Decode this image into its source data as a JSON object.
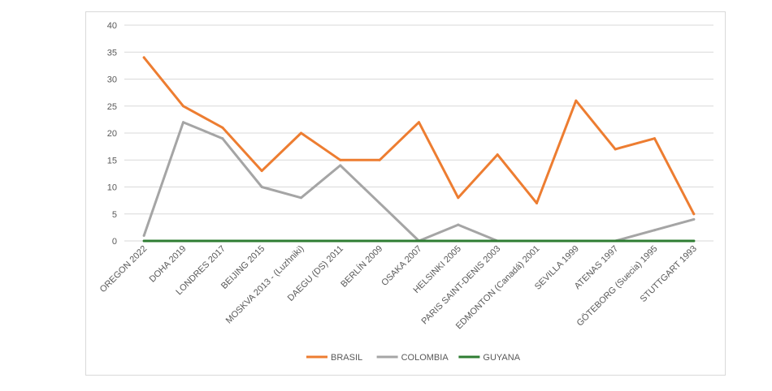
{
  "chart_data": {
    "type": "line",
    "categories": [
      "OREGON 2022",
      "DOHA 2019",
      "LONDRES 2017",
      "BEIJING 2015",
      "MOSKVA 2013 - (Luzhniki)",
      "DAEGU (DS) 2011",
      "BERLÍN 2009",
      "OSAKA 2007",
      "HELSINKI 2005",
      "PARIS SAINT-DENIS 2003",
      "EDMONTON (Canadá) 2001",
      "SEVILLA 1999",
      "ATENAS 1997",
      "GÖTEBORG (Suecia) 1995",
      "STUTTGART 1993"
    ],
    "series": [
      {
        "name": "BRASIL",
        "color": "#ED7D31",
        "values": [
          34,
          25,
          21,
          13,
          20,
          15,
          15,
          22,
          8,
          16,
          7,
          26,
          17,
          19,
          5
        ]
      },
      {
        "name": "COLOMBIA",
        "color": "#A5A5A5",
        "values": [
          1,
          22,
          19,
          10,
          8,
          14,
          7,
          0,
          3,
          0,
          0,
          0,
          0,
          2,
          4
        ]
      },
      {
        "name": "GUYANA",
        "color": "#2E7D32",
        "values": [
          0,
          0,
          0,
          0,
          0,
          0,
          0,
          0,
          0,
          0,
          0,
          0,
          0,
          0,
          0
        ]
      }
    ],
    "yticks": [
      "0",
      "5",
      "10",
      "15",
      "20",
      "25",
      "30",
      "35",
      "40"
    ],
    "ylim": [
      0,
      40
    ],
    "grid": true,
    "legend_position": "bottom",
    "title": "",
    "xlabel": "",
    "ylabel": "",
    "gridline_color": "#d9d9d9"
  }
}
